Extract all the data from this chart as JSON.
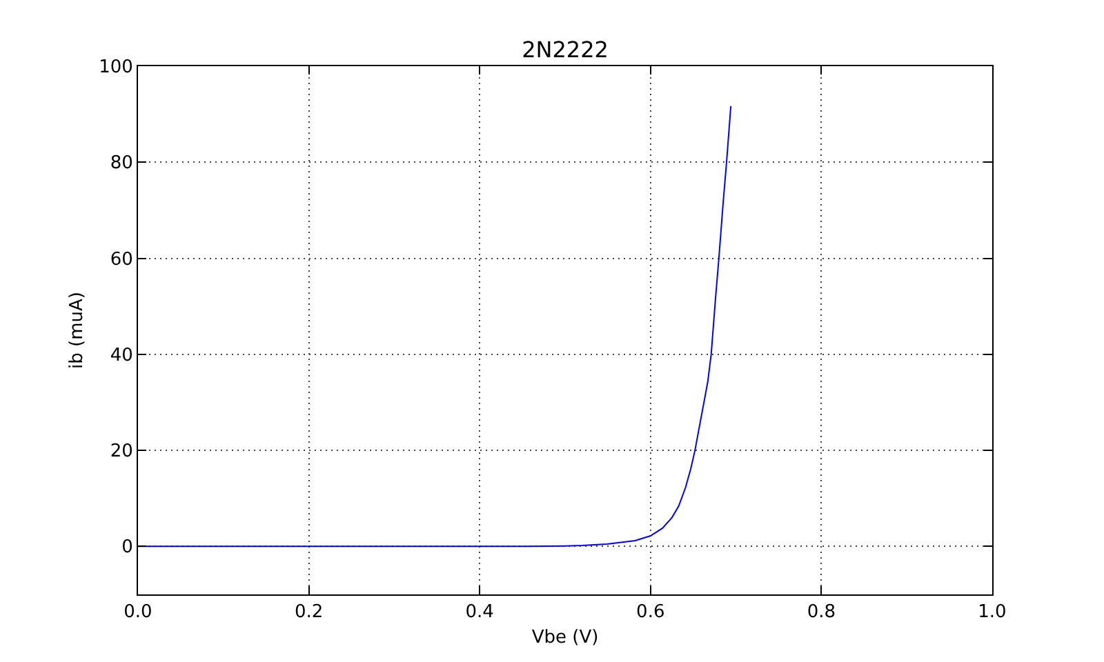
{
  "chart_data": {
    "type": "line",
    "title": "2N2222",
    "xlabel": "Vbe (V)",
    "ylabel": "ib (muA)",
    "x": [
      0,
      0.1,
      0.2,
      0.3,
      0.4,
      0.45,
      0.5,
      0.52,
      0.549,
      0.582,
      0.6,
      0.614,
      0.625,
      0.633,
      0.641,
      0.647,
      0.652,
      0.658,
      0.662,
      0.667,
      0.671,
      0.676,
      0.68,
      0.685,
      0.689,
      0.694
    ],
    "series": [
      {
        "color": "#0000ff",
        "values": [
          0,
          0,
          0,
          0,
          0,
          0,
          0.1,
          0.2,
          0.5,
          1.2,
          2.2,
          3.8,
          6.0,
          8.4,
          12.3,
          16.1,
          20,
          25.7,
          29.5,
          34.3,
          40,
          51.5,
          60,
          71.6,
          80,
          91.7
        ]
      }
    ],
    "xlim": [
      0,
      1
    ],
    "ylim": [
      -10,
      100
    ],
    "xticks": [
      {
        "value": 0,
        "label": "0.0"
      },
      0.2,
      0.4,
      0.6,
      0.8,
      {
        "value": 1,
        "label": "1.0"
      }
    ],
    "yticks": [
      0,
      20,
      40,
      60,
      80,
      100
    ],
    "grid": true,
    "line_style": "solid"
  }
}
